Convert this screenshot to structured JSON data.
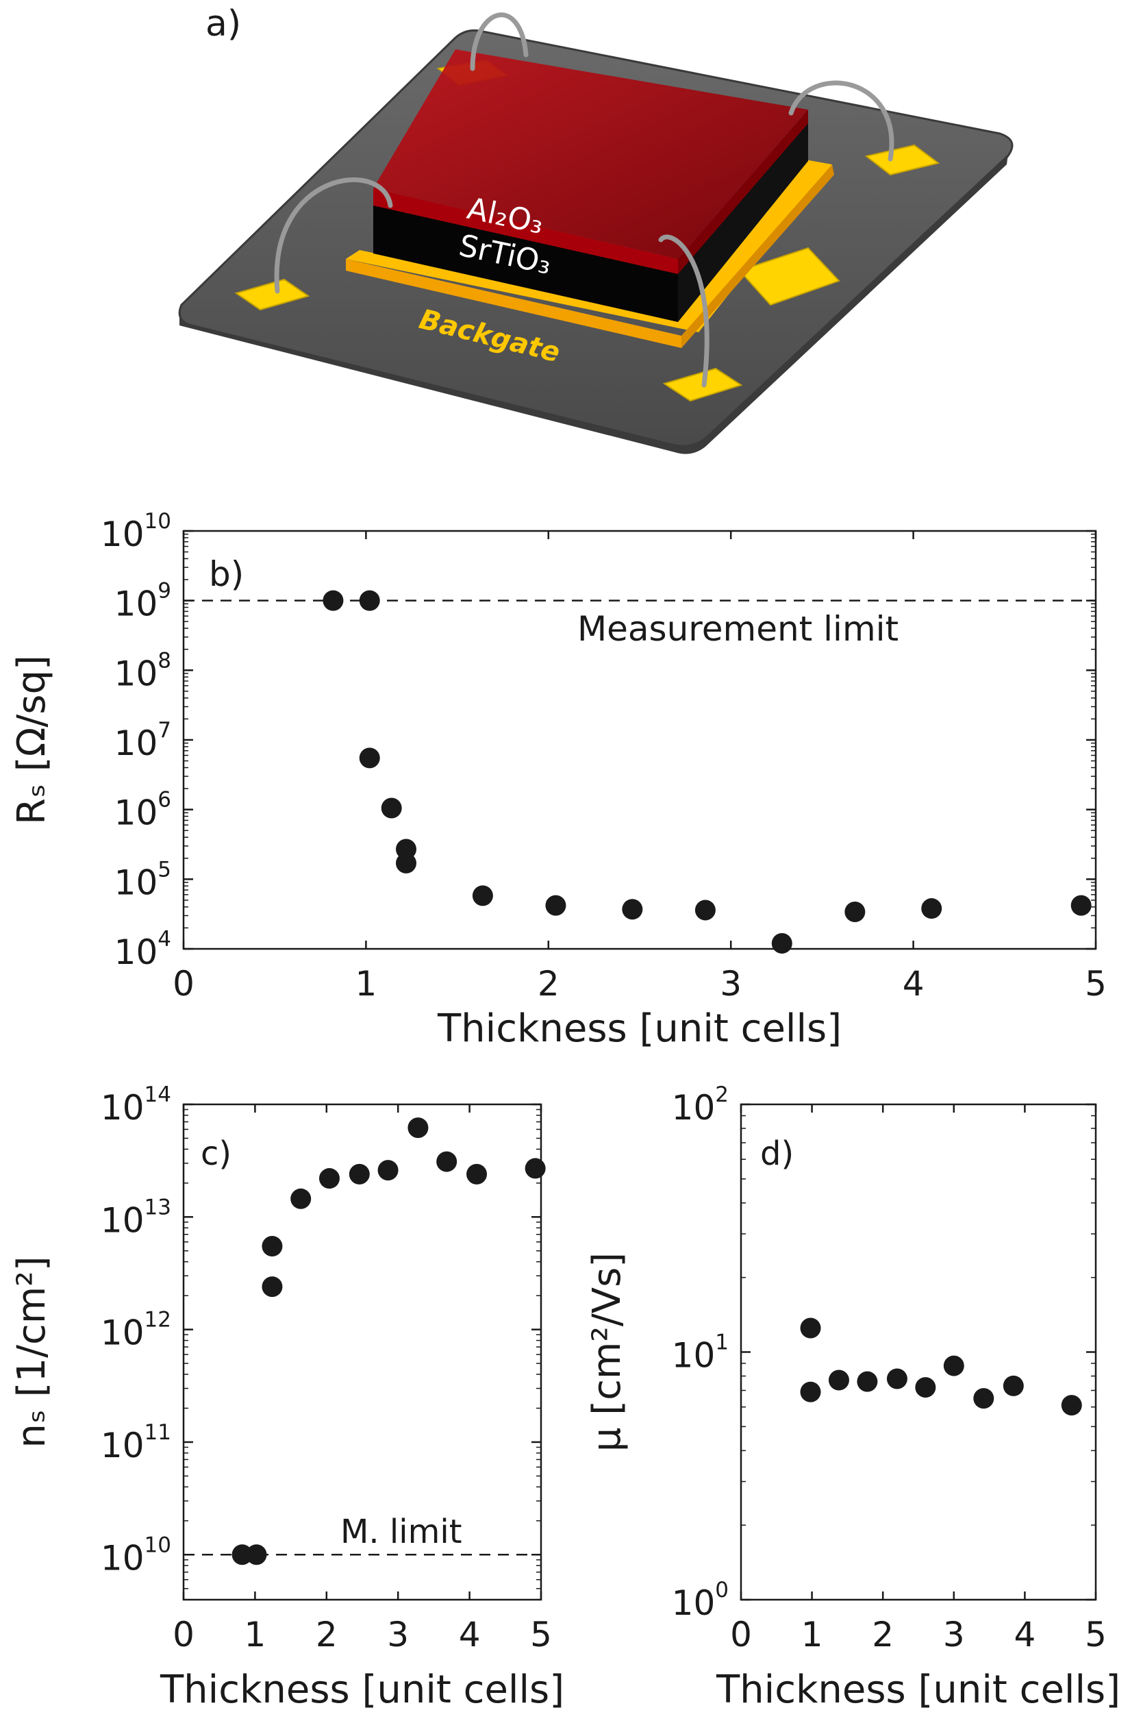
{
  "figure": {
    "panel_a": {
      "label": "a)",
      "layer_top": "Al₂O₃",
      "layer_mid": "SrTiO₃",
      "layer_bottom": "Backgate"
    }
  },
  "chart_data": [
    {
      "id": "b",
      "type": "scatter",
      "panel_label": "b)",
      "xlabel": "Thickness [unit cells]",
      "ylabel": "Rₛ [Ω/sq]",
      "xlim": [
        0,
        5
      ],
      "ylim_log10": [
        4,
        10
      ],
      "yscale": "log",
      "xticks": [
        "0",
        "1",
        "2",
        "3",
        "4",
        "5"
      ],
      "yticks": [
        {
          "base": "10",
          "exp": "4"
        },
        {
          "base": "10",
          "exp": "5"
        },
        {
          "base": "10",
          "exp": "6"
        },
        {
          "base": "10",
          "exp": "7"
        },
        {
          "base": "10",
          "exp": "8"
        },
        {
          "base": "10",
          "exp": "9"
        },
        {
          "base": "10",
          "exp": "10"
        }
      ],
      "limit_line": {
        "y": 1000000000.0,
        "label": "Measurement limit"
      },
      "x": [
        0.82,
        1.02,
        1.02,
        1.14,
        1.22,
        1.22,
        1.64,
        2.04,
        2.46,
        2.86,
        3.28,
        3.68,
        4.1,
        4.92
      ],
      "y": [
        1000000000.0,
        1000000000.0,
        5500000.0,
        1050000.0,
        270000.0,
        170000.0,
        58000.0,
        42000.0,
        37000.0,
        36000.0,
        12000.0,
        34000.0,
        38000.0,
        42000.0
      ]
    },
    {
      "id": "c",
      "type": "scatter",
      "panel_label": "c)",
      "xlabel": "Thickness [unit cells]",
      "ylabel": "nₛ [1/cm²]",
      "xlim": [
        0,
        5
      ],
      "ylim_log10": [
        9.6,
        14
      ],
      "yscale": "log",
      "xticks": [
        "0",
        "1",
        "2",
        "3",
        "4",
        "5"
      ],
      "yticks": [
        {
          "base": "10",
          "exp": "10"
        },
        {
          "base": "10",
          "exp": "11"
        },
        {
          "base": "10",
          "exp": "12"
        },
        {
          "base": "10",
          "exp": "13"
        },
        {
          "base": "10",
          "exp": "14"
        }
      ],
      "limit_line": {
        "y": 10000000000.0,
        "label": "M. limit"
      },
      "x": [
        0.82,
        1.02,
        1.24,
        1.24,
        1.64,
        2.04,
        2.46,
        2.86,
        3.28,
        3.68,
        4.1,
        4.92
      ],
      "y": [
        10000000000.0,
        10000000000.0,
        5500000000000.0,
        2400000000000.0,
        14500000000000.0,
        22000000000000.0,
        24000000000000.0,
        26000000000000.0,
        62000000000000.0,
        31000000000000.0,
        24000000000000.0,
        27000000000000.0
      ]
    },
    {
      "id": "d",
      "type": "scatter",
      "panel_label": "d)",
      "xlabel": "Thickness [unit cells]",
      "ylabel": "μ [cm²/Vs]",
      "xlim": [
        0,
        5
      ],
      "ylim_log10": [
        0,
        2
      ],
      "yscale": "log",
      "xticks": [
        "0",
        "1",
        "2",
        "3",
        "4",
        "5"
      ],
      "yticks": [
        {
          "base": "10",
          "exp": "0"
        },
        {
          "base": "10",
          "exp": "1"
        },
        {
          "base": "10",
          "exp": "2"
        }
      ],
      "x": [
        0.98,
        0.98,
        1.38,
        1.78,
        2.2,
        2.6,
        3.0,
        3.42,
        3.84,
        4.66
      ],
      "y": [
        12.5,
        6.9,
        7.7,
        7.6,
        7.8,
        7.2,
        8.8,
        6.5,
        7.3,
        6.1
      ]
    }
  ]
}
